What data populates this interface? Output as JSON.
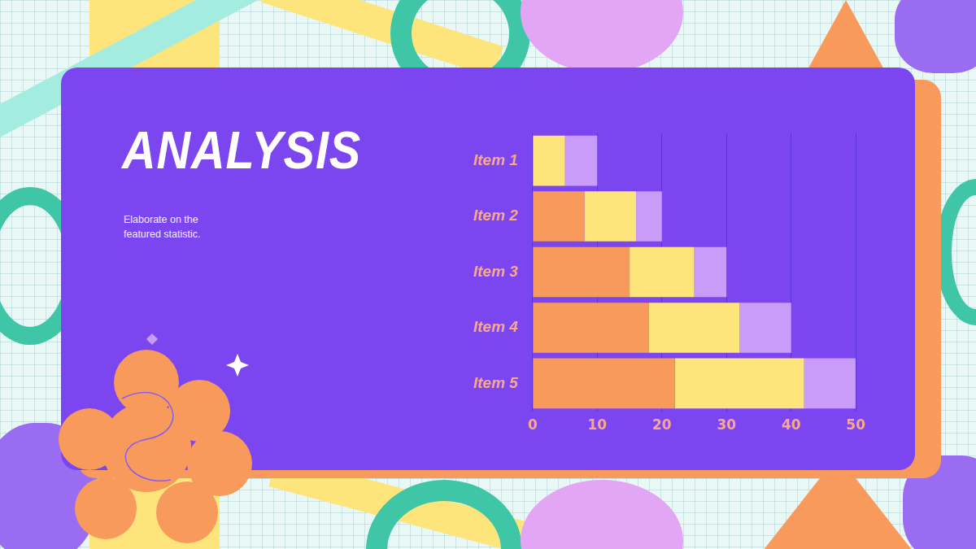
{
  "chart_data": {
    "type": "bar",
    "title": "ANALYSIS",
    "subtitle": "Elaborate on the featured statistic.",
    "orientation": "horizontal",
    "stacked": true,
    "grid": true,
    "categories": [
      "Item 1",
      "Item 2",
      "Item 3",
      "Item 4",
      "Item 5"
    ],
    "series": [
      {
        "color": "#f89a5b",
        "values": [
          0,
          8,
          15,
          18,
          22
        ]
      },
      {
        "color": "#fde57c",
        "values": [
          5,
          8,
          10,
          14,
          20
        ]
      },
      {
        "color": "#c89cf8",
        "values": [
          5,
          4,
          5,
          8,
          8
        ]
      }
    ],
    "xlim": [
      0,
      50
    ],
    "xticks": [
      0,
      10,
      20,
      30,
      40,
      50
    ]
  }
}
